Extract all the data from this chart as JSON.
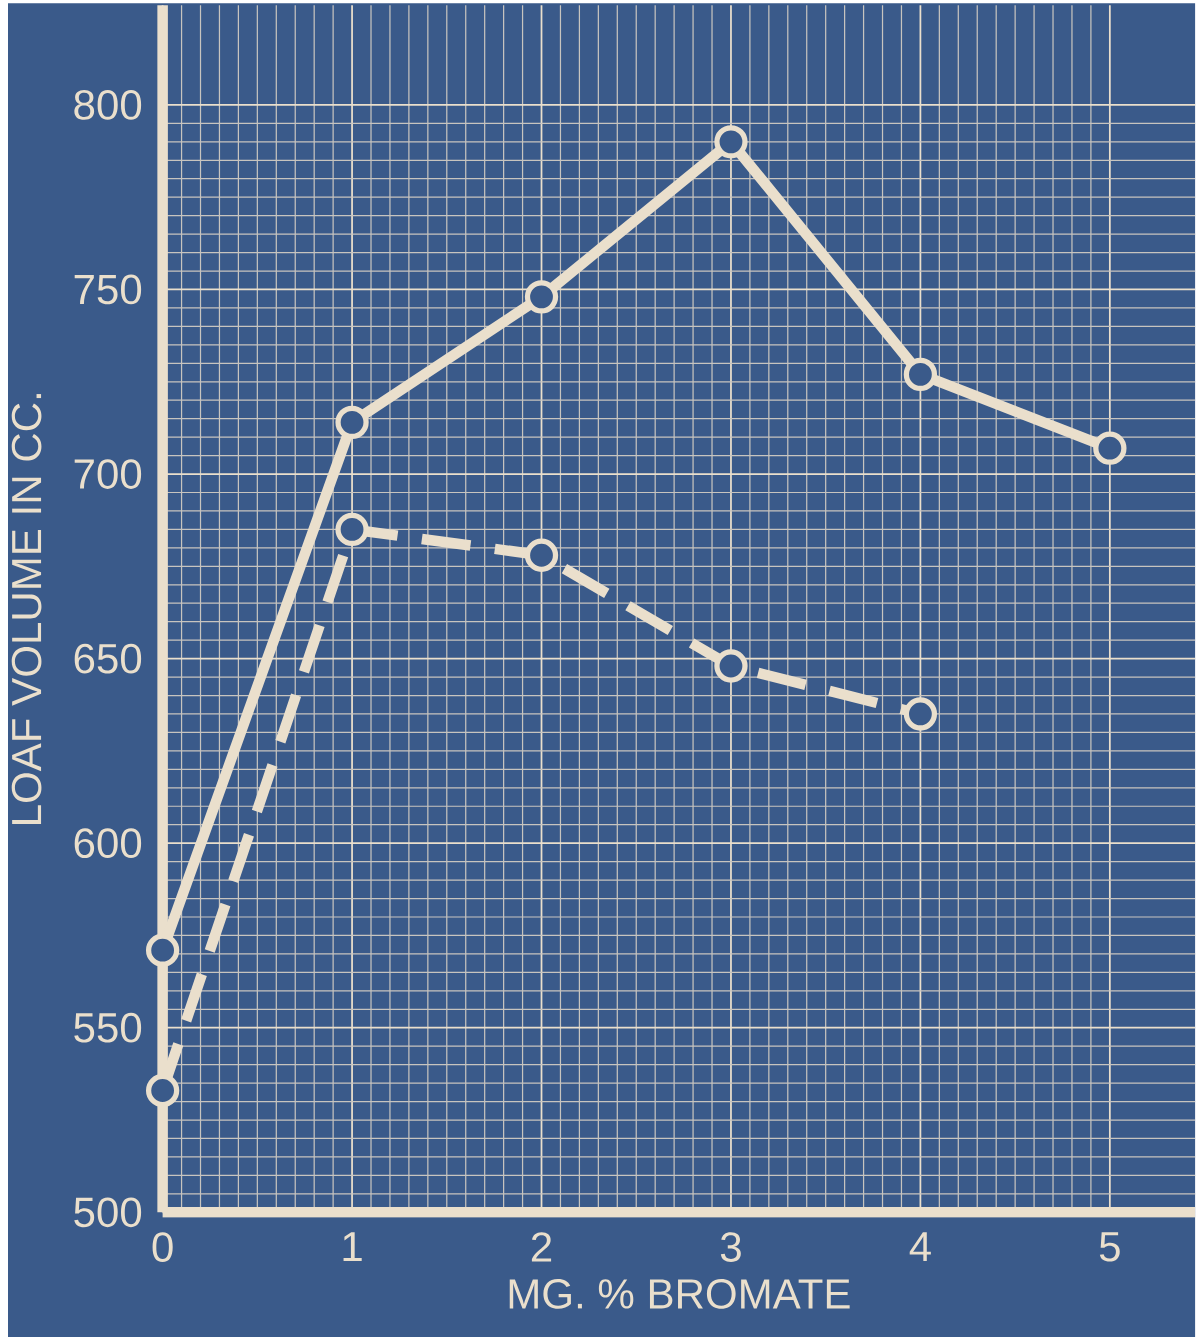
{
  "chart_data": {
    "type": "line",
    "xlabel": "MG. % BROMATE",
    "ylabel": "LOAF VOLUME IN CC.",
    "x": [
      0,
      1,
      2,
      3,
      4,
      5
    ],
    "series": [
      {
        "color": "#eadfcc",
        "line_style": "solid",
        "values": [
          571,
          714,
          748,
          790,
          727,
          707
        ]
      },
      {
        "color": "#eadfcc",
        "line_style": "dashed",
        "values": [
          533,
          685,
          678,
          648,
          635,
          null
        ]
      }
    ],
    "xlim": [
      0,
      5.45
    ],
    "ylim": [
      500,
      827
    ],
    "xticks": [
      0,
      1,
      2,
      3,
      4,
      5
    ],
    "yticks": [
      500,
      550,
      600,
      650,
      700,
      750,
      800
    ],
    "grid": true,
    "marker": "circle"
  }
}
